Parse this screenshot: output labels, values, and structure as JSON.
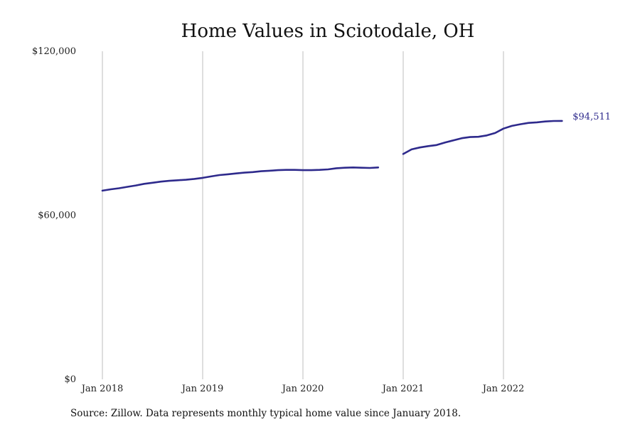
{
  "chart_data": {
    "type": "line",
    "title": "Home Values in Sciotodale, OH",
    "xlabel": "",
    "ylabel": "",
    "ylim": [
      0,
      120000
    ],
    "yticks": [
      {
        "value": 0,
        "label": "$0"
      },
      {
        "value": 60000,
        "label": "$60,000"
      },
      {
        "value": 120000,
        "label": "$120,000"
      }
    ],
    "xlim": [
      "2018-01",
      "2022-12"
    ],
    "xticks": [
      {
        "date": "2018-01",
        "label": "Jan 2018"
      },
      {
        "date": "2019-01",
        "label": "Jan 2019"
      },
      {
        "date": "2020-01",
        "label": "Jan 2020"
      },
      {
        "date": "2021-01",
        "label": "Jan 2021"
      },
      {
        "date": "2022-01",
        "label": "Jan 2022"
      }
    ],
    "grid": "vertical",
    "color": "#2e2a8c",
    "end_label": "$94,511",
    "series": [
      {
        "segments": [
          {
            "x": [
              "2018-01",
              "2018-02",
              "2018-03",
              "2018-04",
              "2018-05",
              "2018-06",
              "2018-07",
              "2018-08",
              "2018-09",
              "2018-10",
              "2018-11",
              "2018-12",
              "2019-01",
              "2019-02",
              "2019-03",
              "2019-04",
              "2019-05",
              "2019-06",
              "2019-07",
              "2019-08",
              "2019-09",
              "2019-10",
              "2019-11",
              "2019-12",
              "2020-01",
              "2020-02",
              "2020-03",
              "2020-04",
              "2020-05",
              "2020-06",
              "2020-07",
              "2020-08",
              "2020-09",
              "2020-10"
            ],
            "y": [
              69000,
              69500,
              69900,
              70400,
              70900,
              71500,
              71900,
              72300,
              72600,
              72800,
              73000,
              73300,
              73700,
              74200,
              74700,
              75000,
              75300,
              75600,
              75800,
              76100,
              76300,
              76500,
              76600,
              76600,
              76500,
              76500,
              76600,
              76800,
              77200,
              77400,
              77500,
              77400,
              77300,
              77500
            ]
          },
          {
            "x": [
              "2021-01",
              "2021-02",
              "2021-03",
              "2021-04",
              "2021-05",
              "2021-06",
              "2021-07",
              "2021-08",
              "2021-09",
              "2021-10",
              "2021-11",
              "2021-12",
              "2022-01",
              "2022-02",
              "2022-03",
              "2022-04",
              "2022-05",
              "2022-06",
              "2022-07",
              "2022-08"
            ],
            "y": [
              82400,
              84100,
              84800,
              85300,
              85700,
              86600,
              87400,
              88200,
              88600,
              88700,
              89200,
              90100,
              91700,
              92700,
              93300,
              93800,
              94000,
              94300,
              94500,
              94511
            ]
          }
        ]
      }
    ]
  },
  "source_text": "Source: Zillow. Data represents monthly typical home value since January 2018."
}
